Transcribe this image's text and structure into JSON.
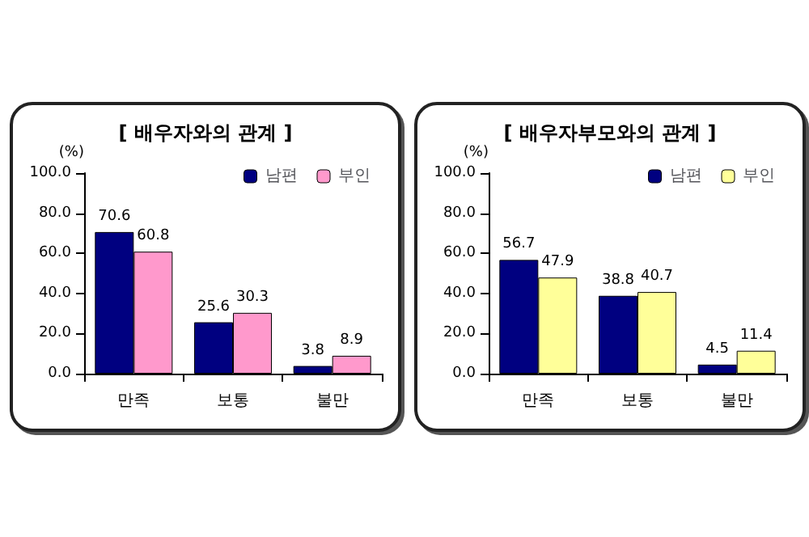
{
  "chart_data": [
    {
      "type": "bar",
      "title": "[ 배우자와의 관계 ]",
      "ylabel": "(%)",
      "categories": [
        "만족",
        "보통",
        "불만"
      ],
      "series": [
        {
          "name": "남편",
          "color": "#000080",
          "values": [
            70.6,
            25.6,
            3.8
          ]
        },
        {
          "name": "부인",
          "color": "#ff99cc",
          "values": [
            60.8,
            30.3,
            8.9
          ]
        }
      ],
      "ylim": [
        0,
        100
      ],
      "yticks": [
        {
          "value": 0,
          "label": "0.0"
        },
        {
          "value": 20,
          "label": "20.0"
        },
        {
          "value": 40,
          "label": "40.0"
        },
        {
          "value": 60,
          "label": "60.0"
        },
        {
          "value": 80,
          "label": "80.0"
        },
        {
          "value": 100,
          "label": "100.0"
        }
      ],
      "data_labels": true,
      "legend": "top right"
    },
    {
      "type": "bar",
      "title": "[ 배우자부모와의 관계 ]",
      "ylabel": "(%)",
      "categories": [
        "만족",
        "보통",
        "불만"
      ],
      "series": [
        {
          "name": "남편",
          "color": "#000080",
          "values": [
            56.7,
            38.8,
            4.5
          ]
        },
        {
          "name": "부인",
          "color": "#ffff99",
          "values": [
            47.9,
            40.7,
            11.4
          ]
        }
      ],
      "ylim": [
        0,
        100
      ],
      "yticks": [
        {
          "value": 0,
          "label": "0.0"
        },
        {
          "value": 20,
          "label": "20.0"
        },
        {
          "value": 40,
          "label": "40.0"
        },
        {
          "value": 60,
          "label": "60.0"
        },
        {
          "value": 80,
          "label": "80.0"
        },
        {
          "value": 100,
          "label": "100.0"
        }
      ],
      "data_labels": true,
      "legend": "top right"
    }
  ]
}
